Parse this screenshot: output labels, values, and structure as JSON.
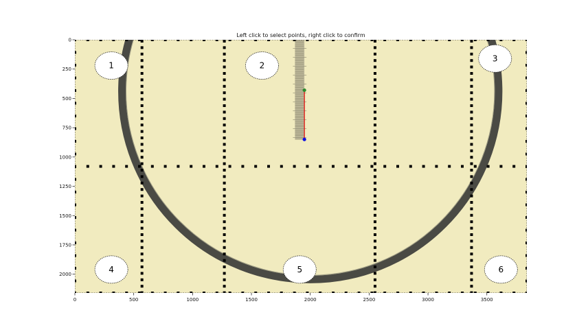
{
  "window": {
    "instruction": "Left click to select points, right click to confirm"
  },
  "plot": {
    "xlim": [
      0,
      3840
    ],
    "ylim": [
      0,
      2160
    ],
    "x_ticks": [
      {
        "value": 0,
        "label": "0"
      },
      {
        "value": 500,
        "label": "500"
      },
      {
        "value": 1000,
        "label": "1000"
      },
      {
        "value": 1500,
        "label": "1500"
      },
      {
        "value": 2000,
        "label": "2000"
      },
      {
        "value": 2500,
        "label": "2500"
      },
      {
        "value": 3000,
        "label": "3000"
      },
      {
        "value": 3500,
        "label": "3500"
      }
    ],
    "y_ticks": [
      {
        "value": 0,
        "label": "0"
      },
      {
        "value": 250,
        "label": "250"
      },
      {
        "value": 500,
        "label": "500"
      },
      {
        "value": 750,
        "label": "750"
      },
      {
        "value": 1000,
        "label": "1000"
      },
      {
        "value": 1250,
        "label": "1250"
      },
      {
        "value": 1500,
        "label": "1500"
      },
      {
        "value": 1750,
        "label": "1750"
      },
      {
        "value": 2000,
        "label": "2000"
      }
    ],
    "background_color": "#f1ebbf",
    "ring_color": "#4a4a44",
    "grid_dot_color": "#000000",
    "measure_line_color": "#e01010",
    "point_start_color": "#2e8b2e",
    "point_end_color": "#1010e0",
    "vertical_grid_x": [
      570,
      1270,
      2550,
      3370
    ],
    "horizontal_grid_y": 1080,
    "ring": {
      "cx": 2000,
      "cy": 440,
      "r": 1600
    },
    "measurement": {
      "start": {
        "x": 1950,
        "y": 430
      },
      "end": {
        "x": 1950,
        "y": 850
      }
    },
    "scale_bar": {
      "x1": 1870,
      "x2": 1950,
      "y1": 0,
      "y2": 850
    }
  },
  "regions": [
    {
      "label": "1",
      "x": 310,
      "y": 220
    },
    {
      "label": "2",
      "x": 1590,
      "y": 220
    },
    {
      "label": "3",
      "x": 3570,
      "y": 160
    },
    {
      "label": "4",
      "x": 310,
      "y": 1960
    },
    {
      "label": "5",
      "x": 1910,
      "y": 1960
    },
    {
      "label": "6",
      "x": 3620,
      "y": 1960
    }
  ]
}
